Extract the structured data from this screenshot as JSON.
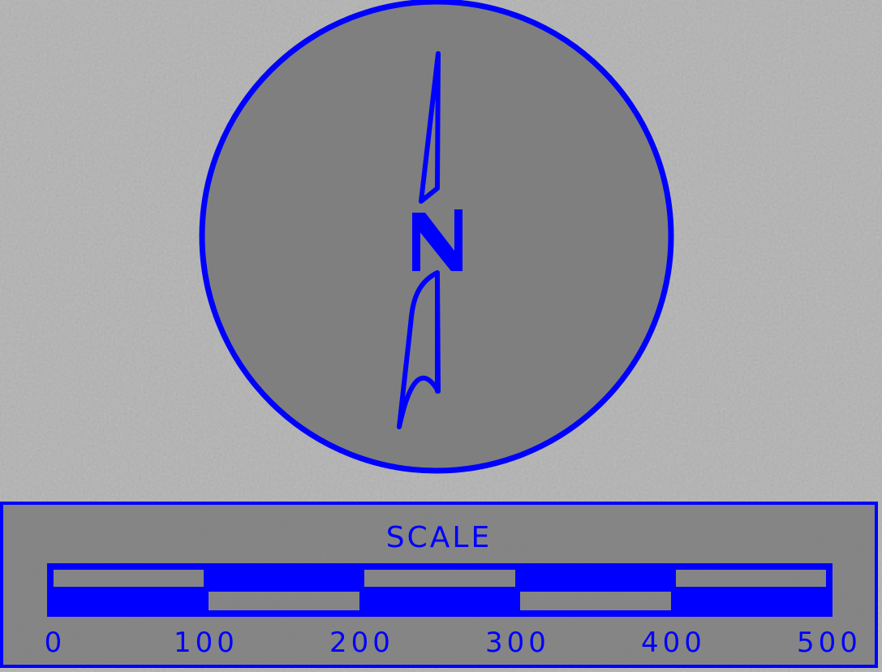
{
  "colors": {
    "accent": "#0000ff",
    "background": "#b3b3b3",
    "panel": "#7d7d7d"
  },
  "compass": {
    "icon": "north-arrow-icon",
    "letter": "N"
  },
  "scale_bar": {
    "title": "SCALE",
    "ticks": [
      "0",
      "100",
      "200",
      "300",
      "400",
      "500"
    ]
  }
}
